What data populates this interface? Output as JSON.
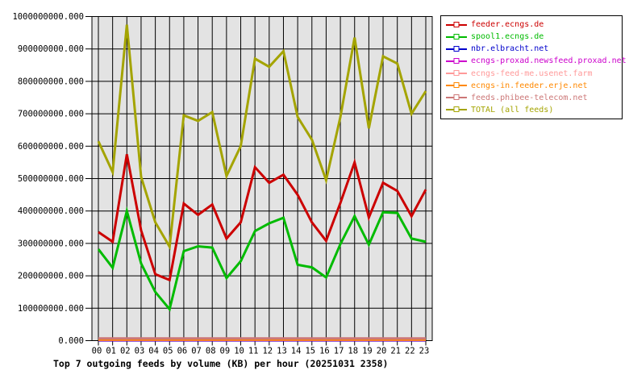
{
  "title": "Top 7 outgoing feeds by volume (KB) per hour (20251031 2358)",
  "chart_data": {
    "type": "line",
    "unit": "KB",
    "grid": true,
    "legend_position": "top-right",
    "plot_bg": "#e3e3e3",
    "grid_color": "#000000",
    "x_axis": {
      "tick_labels": [
        "00",
        "01",
        "02",
        "03",
        "04",
        "05",
        "06",
        "07",
        "08",
        "09",
        "10",
        "11",
        "12",
        "13",
        "14",
        "15",
        "16",
        "17",
        "18",
        "19",
        "20",
        "21",
        "22",
        "23"
      ]
    },
    "y_axis": {
      "min": 0,
      "max": 1000000000,
      "tick_step": 100000000,
      "tick_labels": [
        "0.000",
        "100000000.000",
        "200000000.000",
        "300000000.000",
        "400000000.000",
        "500000000.000",
        "600000000.000",
        "700000000.000",
        "800000000.000",
        "900000000.000",
        "1000000000.000"
      ]
    },
    "series": [
      {
        "name": "feeder.ecngs.de",
        "color": "#cc0000",
        "values": [
          335000000,
          305000000,
          575000000,
          340000000,
          205000000,
          187000000,
          423000000,
          388000000,
          420000000,
          315000000,
          365000000,
          535000000,
          487000000,
          512000000,
          450000000,
          365000000,
          308000000,
          425000000,
          550000000,
          380000000,
          487000000,
          462000000,
          384000000,
          466000000
        ]
      },
      {
        "name": "spool1.ecngs.de",
        "color": "#00bb00",
        "values": [
          282000000,
          225000000,
          400000000,
          238000000,
          150000000,
          97000000,
          276000000,
          291000000,
          287000000,
          193000000,
          245000000,
          338000000,
          362000000,
          379000000,
          234000000,
          226000000,
          195000000,
          298000000,
          384000000,
          296000000,
          396000000,
          394000000,
          315000000,
          305000000
        ]
      },
      {
        "name": "nbr.elbracht.net",
        "color": "#0000cc",
        "values": [
          1000000,
          1000000,
          1000000,
          1000000,
          1000000,
          1000000,
          1000000,
          1000000,
          1000000,
          1000000,
          1000000,
          1000000,
          1000000,
          1000000,
          1000000,
          1000000,
          1000000,
          1000000,
          1000000,
          1000000,
          1000000,
          1000000,
          1000000,
          1000000
        ]
      },
      {
        "name": "ecngs-proxad.newsfeed.proxad.net",
        "color": "#cc00cc",
        "values": [
          2000000,
          2000000,
          2000000,
          2000000,
          2000000,
          2000000,
          2000000,
          2000000,
          2000000,
          2000000,
          2000000,
          2000000,
          2000000,
          2000000,
          2000000,
          2000000,
          2000000,
          2000000,
          2000000,
          2000000,
          2000000,
          2000000,
          2000000,
          2000000
        ]
      },
      {
        "name": "ecngs-feed-me.usenet.farm",
        "color": "#ff9999",
        "values": [
          3000000,
          3000000,
          3000000,
          3000000,
          3000000,
          3000000,
          3000000,
          3000000,
          3000000,
          3000000,
          3000000,
          3000000,
          3000000,
          3000000,
          3000000,
          3000000,
          3000000,
          3000000,
          3000000,
          3000000,
          3000000,
          3000000,
          3000000,
          3000000
        ]
      },
      {
        "name": "ecngs-in.feeder.erje.net",
        "color": "#ff8800",
        "values": [
          3000000,
          3000000,
          3000000,
          3000000,
          3000000,
          3000000,
          3000000,
          3000000,
          3000000,
          3000000,
          3000000,
          3000000,
          3000000,
          3000000,
          3000000,
          3000000,
          3000000,
          3000000,
          3000000,
          3000000,
          3000000,
          3000000,
          3000000,
          3000000
        ]
      },
      {
        "name": "feeds.phibee-telecom.net",
        "color": "#cc7777",
        "values": [
          7000000,
          7000000,
          7000000,
          7000000,
          7000000,
          7000000,
          7000000,
          7000000,
          7000000,
          7000000,
          7000000,
          7000000,
          7000000,
          7000000,
          7000000,
          7000000,
          7000000,
          7000000,
          7000000,
          7000000,
          7000000,
          7000000,
          7000000,
          7000000
        ]
      },
      {
        "name": "TOTAL (all feeds)",
        "color": "#a4a400",
        "values": [
          615000000,
          520000000,
          975000000,
          505000000,
          365000000,
          290000000,
          695000000,
          678000000,
          705000000,
          508000000,
          600000000,
          870000000,
          845000000,
          893000000,
          690000000,
          620000000,
          495000000,
          690000000,
          935000000,
          655000000,
          877000000,
          855000000,
          700000000,
          770000000
        ]
      }
    ]
  }
}
